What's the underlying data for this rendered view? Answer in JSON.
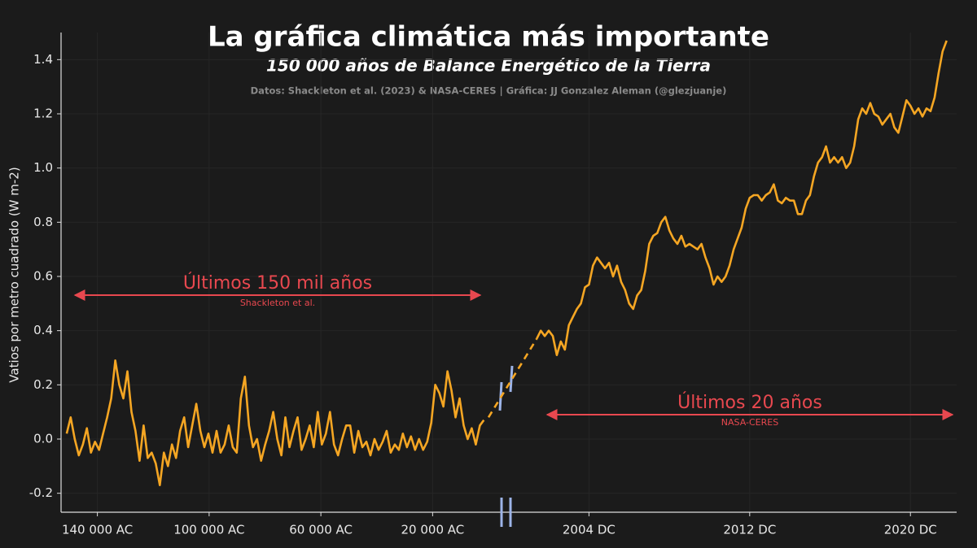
{
  "chart_data": {
    "type": "line",
    "title": "La gráfica climática más importante",
    "subtitle": "150 000 años de Balance Energético de la Tierra",
    "credit": "Datos: Shackleton et al. (2023) & NASA-CERES | Gráfica: JJ Gonzalez Aleman (@glezjuanje)",
    "ylabel": "Vatios por metro cuadrado  (W m-2)",
    "ylim": [
      -0.27,
      1.5
    ],
    "yticks": [
      -0.2,
      {
        "value": 0,
        "label": "0.0"
      },
      0.2,
      0.4,
      0.6,
      0.8,
      {
        "value": 1,
        "label": "1.0"
      },
      1.2,
      1.4
    ],
    "grid": true,
    "annotations": [
      {
        "text": "Últimos 150 mil años",
        "source": "Shackleton et al."
      },
      {
        "text": "Últimos 20 años",
        "source": "NASA-CERES"
      }
    ],
    "panels": [
      {
        "xlim": [
          -153000,
          0
        ],
        "xticks": [
          {
            "value": -140000,
            "label": "140 000 AC"
          },
          {
            "value": -100000,
            "label": "100 000 AC"
          },
          {
            "value": -60000,
            "label": "60 000 AC"
          },
          {
            "value": -20000,
            "label": "20 000 AC"
          }
        ],
        "series": [
          {
            "color": "#f5a623",
            "dashed": false,
            "x": [
              -151000,
              -149550,
              -148100,
              -146650,
              -145200,
              -143750,
              -142300,
              -140850,
              -139400,
              -137950,
              -136500,
              -135050,
              -133600,
              -132150,
              -130700,
              -129250,
              -127800,
              -126350,
              -124900,
              -123450,
              -122000,
              -120550,
              -119100,
              -117650,
              -116200,
              -114750,
              -113300,
              -111850,
              -110400,
              -108950,
              -107500,
              -106050,
              -104600,
              -103150,
              -101700,
              -100250,
              -98800,
              -97350,
              -95900,
              -94450,
              -93000,
              -91550,
              -90100,
              -88650,
              -87200,
              -85750,
              -84300,
              -82850,
              -81400,
              -79950,
              -78500,
              -77050,
              -75600,
              -74150,
              -72700,
              -71250,
              -69800,
              -68350,
              -66900,
              -65450,
              -64000,
              -62550,
              -61100,
              -59650,
              -58200,
              -56750,
              -55300,
              -53850,
              -52400,
              -50950,
              -49500,
              -48050,
              -46600,
              -45150,
              -43700,
              -42250,
              -40800,
              -39350,
              -37900,
              -36450,
              -35000,
              -33550,
              -32100,
              -30650,
              -29200,
              -27750,
              -26300,
              -24850,
              -23400,
              -21950,
              -20500,
              -19050,
              -17600,
              -16150,
              -14700,
              -13250,
              -11800,
              -10350,
              -8900,
              -7450,
              -6000,
              -4550,
              -3100,
              -1650
            ],
            "values": [
              0.02,
              0.08,
              0.0,
              -0.06,
              -0.02,
              0.04,
              -0.05,
              -0.01,
              -0.04,
              0.02,
              0.08,
              0.15,
              0.29,
              0.2,
              0.15,
              0.25,
              0.1,
              0.03,
              -0.08,
              0.05,
              -0.07,
              -0.05,
              -0.09,
              -0.17,
              -0.05,
              -0.1,
              -0.02,
              -0.07,
              0.03,
              0.08,
              -0.03,
              0.05,
              0.13,
              0.03,
              -0.03,
              0.02,
              -0.05,
              0.03,
              -0.05,
              -0.02,
              0.05,
              -0.03,
              -0.05,
              0.15,
              0.23,
              0.05,
              -0.03,
              0.0,
              -0.08,
              -0.02,
              0.03,
              0.1,
              0.0,
              -0.06,
              0.08,
              -0.03,
              0.03,
              0.08,
              -0.04,
              0.0,
              0.05,
              -0.03,
              0.1,
              -0.02,
              0.02,
              0.1,
              -0.02,
              -0.06,
              0.0,
              0.05,
              0.05,
              -0.05,
              0.03,
              -0.03,
              -0.01,
              -0.06,
              0.0,
              -0.04,
              -0.01,
              0.03,
              -0.05,
              -0.02,
              -0.04,
              0.02,
              -0.03,
              0.01,
              -0.04,
              0.0,
              -0.04,
              -0.01,
              0.06,
              0.2,
              0.17,
              0.12,
              0.25,
              0.18,
              0.08,
              0.15,
              0.05,
              0.0,
              0.04,
              -0.02,
              0.05,
              0.07
            ]
          }
        ]
      },
      {
        "xlim": [
          1999,
          2022.3
        ],
        "xticks": [
          {
            "value": 2004,
            "label": "2004 DC"
          },
          {
            "value": 2012,
            "label": "2012 DC"
          },
          {
            "value": 2020,
            "label": "2020 DC"
          }
        ],
        "series": [
          {
            "color": "#f5a623",
            "dashed": true,
            "x": [
              1999,
              2001.4
            ],
            "values": [
              0.08,
              0.37
            ]
          },
          {
            "color": "#f5a623",
            "dashed": false,
            "x": [
              2001.4,
              2001.6,
              2001.8,
              2002,
              2002.2,
              2002.4,
              2002.6,
              2002.8,
              2003,
              2003.2,
              2003.4,
              2003.6,
              2003.8,
              2004,
              2004.2,
              2004.4,
              2004.6,
              2004.8,
              2005,
              2005.2,
              2005.4,
              2005.6,
              2005.8,
              2006,
              2006.2,
              2006.4,
              2006.6,
              2006.8,
              2007,
              2007.2,
              2007.4,
              2007.6,
              2007.8,
              2008,
              2008.2,
              2008.4,
              2008.6,
              2008.8,
              2009,
              2009.2,
              2009.4,
              2009.6,
              2009.8,
              2010,
              2010.2,
              2010.4,
              2010.6,
              2010.8,
              2011,
              2011.2,
              2011.4,
              2011.6,
              2011.8,
              2012,
              2012.2,
              2012.4,
              2012.6,
              2012.8,
              2013,
              2013.2,
              2013.4,
              2013.6,
              2013.8,
              2014,
              2014.2,
              2014.4,
              2014.6,
              2014.8,
              2015,
              2015.2,
              2015.4,
              2015.6,
              2015.8,
              2016,
              2016.2,
              2016.4,
              2016.6,
              2016.8,
              2017,
              2017.2,
              2017.4,
              2017.6,
              2017.8,
              2018,
              2018.2,
              2018.4,
              2018.6,
              2018.8,
              2019,
              2019.2,
              2019.4,
              2019.6,
              2019.8,
              2020,
              2020.2,
              2020.4,
              2020.6,
              2020.8,
              2021,
              2021.2,
              2021.4,
              2021.6,
              2021.8
            ],
            "values": [
              0.37,
              0.4,
              0.38,
              0.4,
              0.38,
              0.31,
              0.36,
              0.33,
              0.42,
              0.45,
              0.48,
              0.5,
              0.56,
              0.57,
              0.64,
              0.67,
              0.65,
              0.63,
              0.65,
              0.6,
              0.64,
              0.58,
              0.55,
              0.5,
              0.48,
              0.53,
              0.55,
              0.62,
              0.72,
              0.75,
              0.76,
              0.8,
              0.82,
              0.77,
              0.74,
              0.72,
              0.75,
              0.71,
              0.72,
              0.71,
              0.7,
              0.72,
              0.67,
              0.63,
              0.57,
              0.6,
              0.58,
              0.6,
              0.64,
              0.7,
              0.74,
              0.78,
              0.85,
              0.89,
              0.9,
              0.9,
              0.88,
              0.9,
              0.91,
              0.94,
              0.88,
              0.87,
              0.89,
              0.88,
              0.88,
              0.83,
              0.83,
              0.88,
              0.9,
              0.97,
              1.02,
              1.04,
              1.08,
              1.02,
              1.04,
              1.02,
              1.04,
              1.0,
              1.02,
              1.08,
              1.18,
              1.22,
              1.2,
              1.24,
              1.2,
              1.19,
              1.16,
              1.18,
              1.2,
              1.15,
              1.13,
              1.19,
              1.25,
              1.23,
              1.2,
              1.22,
              1.19,
              1.22,
              1.21,
              1.26,
              1.35,
              1.43,
              1.47
            ]
          }
        ]
      }
    ]
  }
}
